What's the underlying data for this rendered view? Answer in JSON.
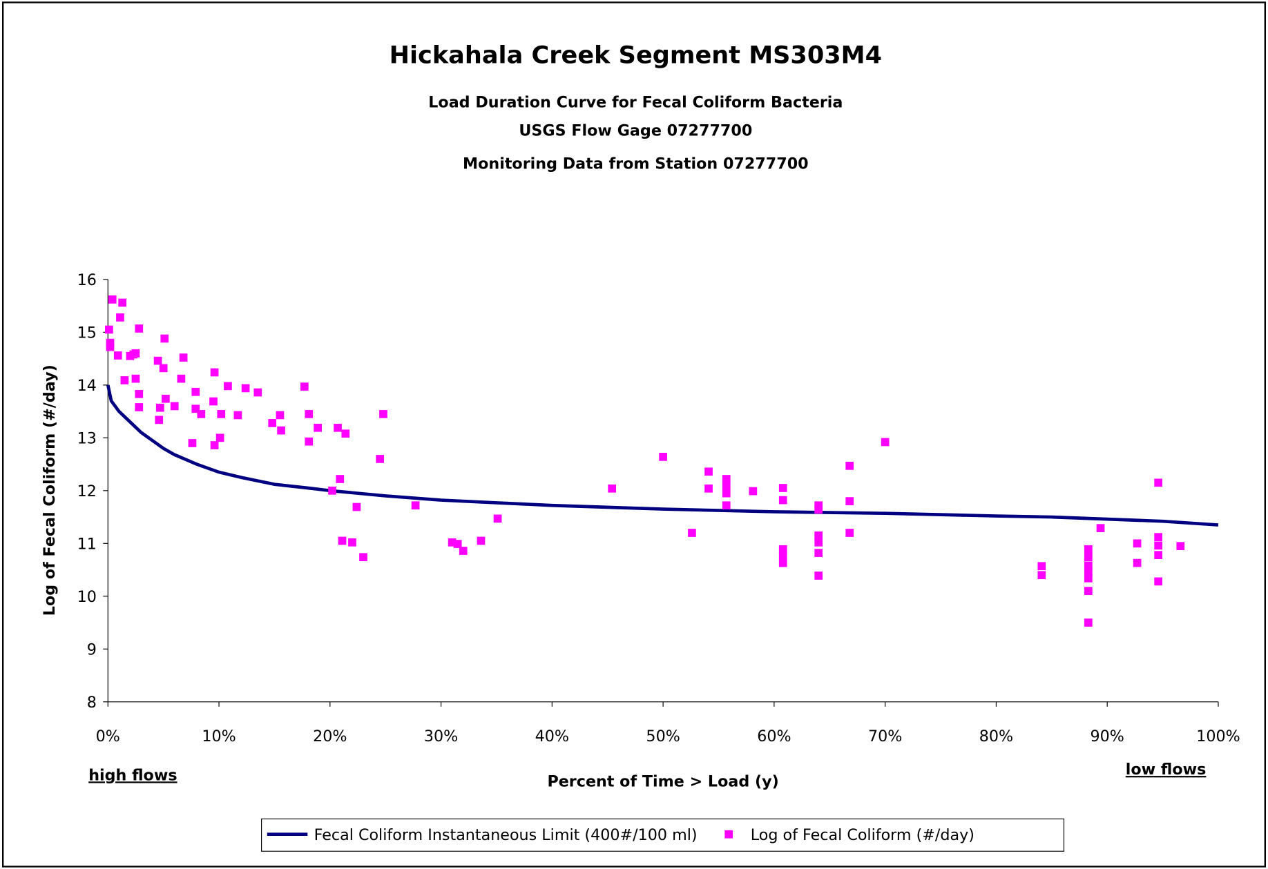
{
  "chart_data": {
    "type": "scatter",
    "title": "Hickahala Creek Segment MS303M4",
    "subtitles": [
      "Load Duration Curve for Fecal Coliform Bacteria",
      "USGS Flow Gage 07277700",
      "Monitoring Data from Station 07277700"
    ],
    "xlabel": "Percent of Time > Load (y)",
    "ylabel": "Log of Fecal Coliform (#/day)",
    "annotations": [
      "high flows",
      "low flows"
    ],
    "xlim": [
      0,
      100
    ],
    "xticks": [
      {
        "value": 0,
        "label": "0%"
      },
      {
        "value": 10,
        "label": "10%"
      },
      {
        "value": 20,
        "label": "20%"
      },
      {
        "value": 30,
        "label": "30%"
      },
      {
        "value": 40,
        "label": "40%"
      },
      {
        "value": 50,
        "label": "50%"
      },
      {
        "value": 60,
        "label": "60%"
      },
      {
        "value": 70,
        "label": "70%"
      },
      {
        "value": 80,
        "label": "80%"
      },
      {
        "value": 90,
        "label": "90%"
      },
      {
        "value": 100,
        "label": "100%"
      }
    ],
    "ylim": [
      8,
      16
    ],
    "yticks": [
      8,
      9,
      10,
      11,
      12,
      13,
      14,
      15,
      16
    ],
    "grid": false,
    "legend": "bottom",
    "series": [
      {
        "name": "Fecal Coliform Instantaneous Limit (400#/100 ml)",
        "style": "line",
        "color": "#000080",
        "x": [
          0,
          0.3,
          1,
          2,
          3,
          4,
          5,
          6,
          8,
          10,
          12,
          15,
          18,
          20,
          25,
          30,
          35,
          40,
          50,
          60,
          70,
          80,
          85,
          90,
          95,
          100
        ],
        "values": [
          14.0,
          13.7,
          13.5,
          13.3,
          13.1,
          12.95,
          12.8,
          12.68,
          12.5,
          12.35,
          12.25,
          12.12,
          12.05,
          12.0,
          11.9,
          11.82,
          11.77,
          11.72,
          11.65,
          11.6,
          11.57,
          11.52,
          11.5,
          11.46,
          11.42,
          11.35
        ]
      },
      {
        "name": "Log of Fecal Coliform (#/day)",
        "style": "marker",
        "color": "#ff00ff",
        "x": [
          0.1,
          0.2,
          0.2,
          0.4,
          1.1,
          1.3,
          0.9,
          1.5,
          2.0,
          2.3,
          2.5,
          2.5,
          2.8,
          2.8,
          2.8,
          4.6,
          4.5,
          4.7,
          5.1,
          5.0,
          5.2,
          6.0,
          6.6,
          6.8,
          7.6,
          7.9,
          7.9,
          8.4,
          9.6,
          9.5,
          9.6,
          10.1,
          10.2,
          10.8,
          11.7,
          12.4,
          13.5,
          14.8,
          15.5,
          15.6,
          17.7,
          18.1,
          18.1,
          18.9,
          20.2,
          20.7,
          20.9,
          21.1,
          21.4,
          22.0,
          22.4,
          23.0,
          24.5,
          24.8,
          27.7,
          31.0,
          31.5,
          32.0,
          33.6,
          35.1,
          45.4,
          50.0,
          52.6,
          54.1,
          54.1,
          55.7,
          55.7,
          55.7,
          55.7,
          58.1,
          60.8,
          60.8,
          60.8,
          60.8,
          60.8,
          64.0,
          64.0,
          64.0,
          64.0,
          64.0,
          64.0,
          66.8,
          66.8,
          66.8,
          70.0,
          84.1,
          84.1,
          88.3,
          88.3,
          88.3,
          88.3,
          88.3,
          88.3,
          88.3,
          89.4,
          92.7,
          92.7,
          94.6,
          94.6,
          94.6,
          94.6,
          94.6,
          96.6
        ],
        "values": [
          15.05,
          14.8,
          14.72,
          15.62,
          15.28,
          15.56,
          14.56,
          14.09,
          14.55,
          14.58,
          14.6,
          14.12,
          15.07,
          13.83,
          13.58,
          13.34,
          14.46,
          13.57,
          14.88,
          14.32,
          13.74,
          13.6,
          14.12,
          14.52,
          12.9,
          13.55,
          13.87,
          13.45,
          14.24,
          13.69,
          12.86,
          13.0,
          13.45,
          13.98,
          13.43,
          13.94,
          13.86,
          13.28,
          13.43,
          13.14,
          13.97,
          13.45,
          12.93,
          13.19,
          12.0,
          13.19,
          12.22,
          11.05,
          13.08,
          11.02,
          11.69,
          10.74,
          12.6,
          13.45,
          11.72,
          11.02,
          10.99,
          10.86,
          11.05,
          11.47,
          12.04,
          12.64,
          11.2,
          12.36,
          12.04,
          12.22,
          12.1,
          11.95,
          11.72,
          11.99,
          12.05,
          11.82,
          10.89,
          10.77,
          10.63,
          11.72,
          11.64,
          11.15,
          11.02,
          10.82,
          10.39,
          12.47,
          11.8,
          11.2,
          12.92,
          10.57,
          10.4,
          10.89,
          10.74,
          10.58,
          10.46,
          10.34,
          10.1,
          9.5,
          11.29,
          11.0,
          10.63,
          12.15,
          11.12,
          10.96,
          10.78,
          10.28,
          10.95
        ]
      }
    ]
  }
}
